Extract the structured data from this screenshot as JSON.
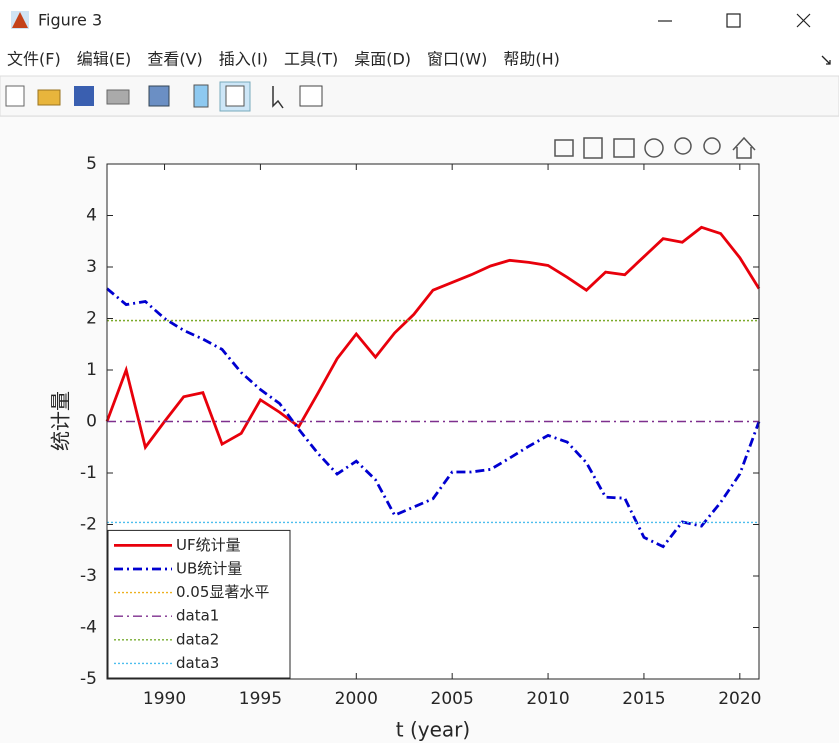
{
  "window": {
    "title": "Figure 3",
    "menu": [
      "文件(F)",
      "编辑(E)",
      "查看(V)",
      "插入(I)",
      "工具(T)",
      "桌面(D)",
      "窗口(W)",
      "帮助(H)"
    ]
  },
  "chart_data": {
    "type": "line",
    "xlabel": "t (year)",
    "ylabel": "统计量",
    "x": [
      1987,
      1988,
      1989,
      1990,
      1991,
      1992,
      1993,
      1994,
      1995,
      1996,
      1997,
      1998,
      1999,
      2000,
      2001,
      2002,
      2003,
      2004,
      2005,
      2006,
      2007,
      2008,
      2009,
      2010,
      2011,
      2012,
      2013,
      2014,
      2015,
      2016,
      2017,
      2018,
      2019,
      2020,
      2021
    ],
    "xlim": [
      1987,
      2021
    ],
    "xticks": [
      1990,
      1995,
      2000,
      2005,
      2010,
      2015,
      2020
    ],
    "ylim": [
      -5,
      5
    ],
    "yticks": [
      -5,
      -4,
      -3,
      -2,
      -1,
      0,
      1,
      2,
      3,
      4,
      5
    ],
    "legend": "lower left",
    "series": [
      {
        "name": "UF统计量",
        "color": "#e8000b",
        "style": "solid",
        "values": [
          0,
          1.0,
          -0.5,
          0.0,
          0.48,
          0.56,
          -0.44,
          -0.23,
          0.42,
          0.18,
          -0.1,
          0.55,
          1.22,
          1.7,
          1.25,
          1.72,
          2.08,
          2.55,
          2.7,
          2.85,
          3.02,
          3.13,
          3.09,
          3.03,
          2.8,
          2.55,
          2.9,
          2.85,
          3.2,
          3.55,
          3.48,
          3.77,
          3.65,
          3.18,
          2.58
        ]
      },
      {
        "name": "UB统计量",
        "color": "#0000d0",
        "style": "dashdot",
        "values": [
          2.58,
          2.27,
          2.33,
          2.0,
          1.77,
          1.6,
          1.4,
          0.95,
          0.62,
          0.35,
          -0.15,
          -0.62,
          -1.02,
          -0.77,
          -1.13,
          -1.82,
          -1.66,
          -1.5,
          -0.98,
          -0.98,
          -0.93,
          -0.71,
          -0.48,
          -0.27,
          -0.4,
          -0.8,
          -1.47,
          -1.49,
          -2.25,
          -2.43,
          -1.95,
          -2.03,
          -1.57,
          -1.02,
          0.0
        ]
      },
      {
        "name": "0.05显著水平",
        "color": "#edb120",
        "style": "dotted",
        "y": 1.96
      },
      {
        "name": "data1",
        "color": "#7e2f8e",
        "style": "dashdot",
        "y": 0
      },
      {
        "name": "data2",
        "color": "#77ac30",
        "style": "dotted",
        "y": 1.96
      },
      {
        "name": "data3",
        "color": "#4dbeee",
        "style": "dotted",
        "y": -1.96
      }
    ]
  }
}
